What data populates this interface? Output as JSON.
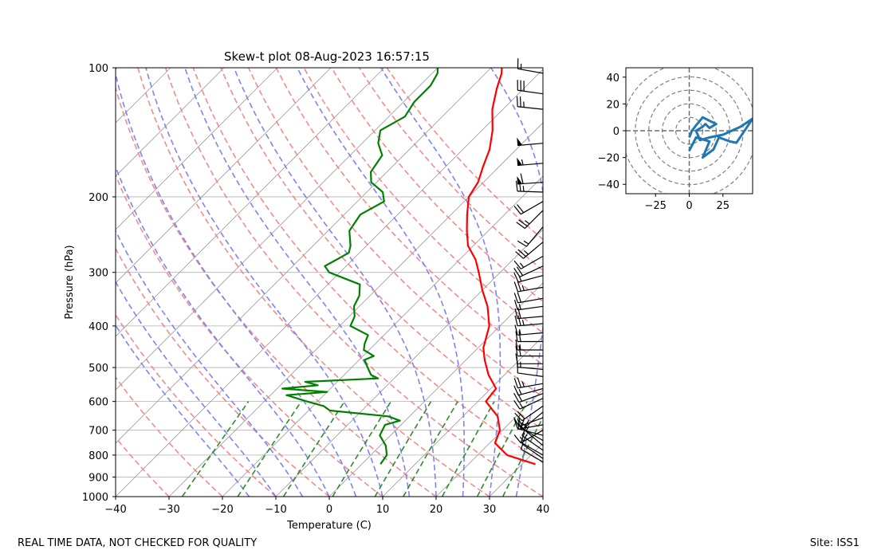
{
  "chart_data": [
    {
      "type": "line",
      "title": "Skew-t plot 08-Aug-2023 16:57:15",
      "xlabel": "Temperature (C)",
      "ylabel": "Pressure (hPa)",
      "xlim": [
        -40,
        40
      ],
      "ylim": [
        1000,
        100
      ],
      "y_scale": "log",
      "skew": "isotherms tilted to upper right",
      "grid": true,
      "xticks": [
        "−40",
        "−30",
        "−20",
        "−10",
        "0",
        "10",
        "20",
        "30",
        "40"
      ],
      "yticks": [
        "100",
        "200",
        "300",
        "400",
        "500",
        "600",
        "700",
        "800",
        "900",
        "1000"
      ],
      "colors": {
        "temperature": "#ff0000",
        "dewpoint": "#008000",
        "dry_adiabat": "#f08080",
        "moist_adiabat": "#7b7bf0",
        "mixing_ratio": "#2e8b2e",
        "isotherm": "#9a9a9a"
      },
      "series": [
        {
          "role": "temperature",
          "color": "#ff0000",
          "points": [
            [
              840,
              32.5
            ],
            [
              800,
              25.5
            ],
            [
              750,
              21
            ],
            [
              700,
              19.5
            ],
            [
              650,
              16.5
            ],
            [
              600,
              11.5
            ],
            [
              560,
              11
            ],
            [
              520,
              7
            ],
            [
              480,
              3.5
            ],
            [
              450,
              1
            ],
            [
              400,
              -2
            ],
            [
              360,
              -6
            ],
            [
              330,
              -10
            ],
            [
              300,
              -14
            ],
            [
              280,
              -17
            ],
            [
              260,
              -21
            ],
            [
              240,
              -24
            ],
            [
              220,
              -27
            ],
            [
              200,
              -30
            ],
            [
              185,
              -31
            ],
            [
              170,
              -33
            ],
            [
              155,
              -35
            ],
            [
              140,
              -38
            ],
            [
              125,
              -42
            ],
            [
              112,
              -45
            ],
            [
              103,
              -47
            ],
            [
              100,
              -48
            ]
          ]
        },
        {
          "role": "dewpoint",
          "color": "#008000",
          "points": [
            [
              840,
              3.5
            ],
            [
              800,
              3
            ],
            [
              760,
              1
            ],
            [
              720,
              -2
            ],
            [
              700,
              -2.5
            ],
            [
              680,
              -3
            ],
            [
              665,
              -1
            ],
            [
              650,
              -4
            ],
            [
              630,
              -16
            ],
            [
              615,
              -18
            ],
            [
              600,
              -22
            ],
            [
              580,
              -27
            ],
            [
              570,
              -20
            ],
            [
              560,
              -29
            ],
            [
              550,
              -23
            ],
            [
              540,
              -26
            ],
            [
              530,
              -13
            ],
            [
              520,
              -15
            ],
            [
              500,
              -17
            ],
            [
              480,
              -19
            ],
            [
              470,
              -18
            ],
            [
              455,
              -21
            ],
            [
              440,
              -22
            ],
            [
              420,
              -23
            ],
            [
              400,
              -28
            ],
            [
              380,
              -29
            ],
            [
              360,
              -31
            ],
            [
              340,
              -32
            ],
            [
              320,
              -34
            ],
            [
              300,
              -42
            ],
            [
              290,
              -44
            ],
            [
              280,
              -43
            ],
            [
              270,
              -42
            ],
            [
              260,
              -43
            ],
            [
              240,
              -46
            ],
            [
              220,
              -47
            ],
            [
              205,
              -45
            ],
            [
              195,
              -47
            ],
            [
              185,
              -51
            ],
            [
              175,
              -53
            ],
            [
              160,
              -54
            ],
            [
              150,
              -57
            ],
            [
              140,
              -59
            ],
            [
              130,
              -57
            ],
            [
              120,
              -58
            ],
            [
              110,
              -58
            ],
            [
              103,
              -59
            ],
            [
              100,
              -60
            ]
          ]
        }
      ],
      "wind_barbs": "profile of wind barbs along right edge, 850 hPa to 100 hPa"
    },
    {
      "type": "line",
      "subtype": "hodograph",
      "xlim": [
        -47,
        47
      ],
      "ylim": [
        -47,
        47
      ],
      "xticks": [
        "−25",
        "0",
        "25"
      ],
      "yticks": [
        "40",
        "20",
        "0",
        "−20",
        "−40"
      ],
      "rings": [
        10,
        20,
        30,
        40,
        50
      ],
      "color": "#1f77b4",
      "series": [
        {
          "points": [
            [
              0,
              -15
            ],
            [
              5,
              -5
            ],
            [
              15,
              -8
            ],
            [
              10,
              -20
            ],
            [
              18,
              -14
            ],
            [
              22,
              -5
            ],
            [
              30,
              -8
            ],
            [
              35,
              -9
            ],
            [
              47,
              9
            ],
            [
              38,
              3
            ],
            [
              25,
              -3
            ],
            [
              15,
              -5
            ],
            [
              8,
              -7
            ],
            [
              5,
              0
            ],
            [
              10,
              3
            ],
            [
              12,
              5
            ],
            [
              15,
              2
            ],
            [
              20,
              5
            ],
            [
              14,
              8
            ],
            [
              10,
              10
            ],
            [
              5,
              4
            ],
            [
              2,
              0
            ],
            [
              0,
              -5
            ]
          ]
        }
      ]
    }
  ],
  "footer": {
    "left": "REAL TIME DATA, NOT CHECKED FOR QUALITY",
    "right": "Site: ISS1"
  }
}
